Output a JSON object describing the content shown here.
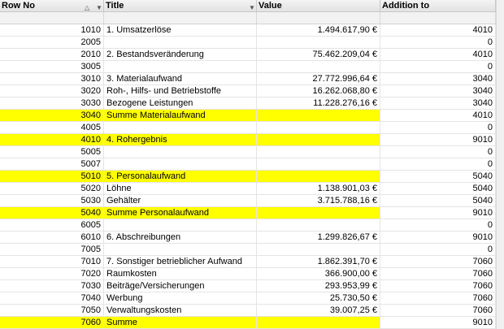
{
  "table": {
    "columns": [
      "Row No",
      "Title",
      "Value",
      "Addition to"
    ],
    "highlight_color": "#ffff00",
    "rows": [
      {
        "cells": [
          "1010",
          "1. Umsatzerlöse",
          "1.494.617,90 €",
          "4010"
        ]
      },
      {
        "cells": [
          "2005",
          null,
          null,
          "0"
        ]
      },
      {
        "cells": [
          "2010",
          "2. Bestandsveränderung",
          "75.462.209,04 €",
          "4010"
        ]
      },
      {
        "cells": [
          "3005",
          null,
          null,
          "0"
        ]
      },
      {
        "cells": [
          "3010",
          "3. Materialaufwand",
          "27.772.996,64 €",
          "3040"
        ]
      },
      {
        "cells": [
          "3020",
          "Roh-, Hilfs- und Betriebstoffe",
          "16.262.068,80 €",
          "3040"
        ]
      },
      {
        "cells": [
          "3030",
          "Bezogene Leistungen",
          "11.228.276,16 €",
          "3040"
        ]
      },
      {
        "cells": [
          "3040",
          "Summe Materialaufwand",
          null,
          "4010"
        ],
        "highlight": true
      },
      {
        "cells": [
          "4005",
          null,
          null,
          "0"
        ]
      },
      {
        "cells": [
          "4010",
          "4. Rohergebnis",
          null,
          "9010"
        ],
        "highlight": true
      },
      {
        "cells": [
          "5005",
          null,
          null,
          "0"
        ]
      },
      {
        "cells": [
          "5007",
          null,
          null,
          "0"
        ]
      },
      {
        "cells": [
          "5010",
          "5. Personalaufwand",
          null,
          "5040"
        ],
        "highlight": true
      },
      {
        "cells": [
          "5020",
          "Löhne",
          "1.138.901,03 €",
          "5040"
        ]
      },
      {
        "cells": [
          "5030",
          "Gehälter",
          "3.715.788,16 €",
          "5040"
        ]
      },
      {
        "cells": [
          "5040",
          "Summe Personalaufwand",
          null,
          "9010"
        ],
        "highlight": true
      },
      {
        "cells": [
          "6005",
          null,
          null,
          "0"
        ]
      },
      {
        "cells": [
          "6010",
          "6. Abschreibungen",
          "1.299.826,67 €",
          "9010"
        ]
      },
      {
        "cells": [
          "7005",
          null,
          null,
          "0"
        ]
      },
      {
        "cells": [
          "7010",
          "7. Sonstiger betrieblicher Aufwand",
          "1.862.391,70 €",
          "7060"
        ]
      },
      {
        "cells": [
          "7020",
          "Raumkosten",
          "366.900,00 €",
          "7060"
        ]
      },
      {
        "cells": [
          "7030",
          "Beiträge/Versicherungen",
          "293.953,99 €",
          "7060"
        ]
      },
      {
        "cells": [
          "7040",
          "Werbung",
          "25.730,50 €",
          "7060"
        ]
      },
      {
        "cells": [
          "7050",
          "Verwaltungskosten",
          "39.007,25 €",
          "7060"
        ]
      },
      {
        "cells": [
          "7060",
          "Summe",
          null,
          "9010"
        ],
        "highlight": true
      }
    ]
  }
}
